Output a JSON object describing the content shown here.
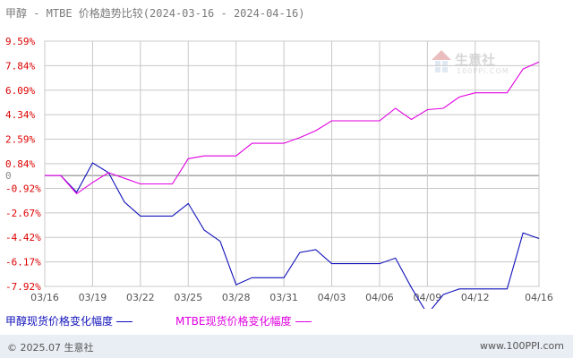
{
  "title": "甲醇 - MTBE 价格趋势比较(2024-03-16 - 2024-04-16)",
  "watermark": {
    "text": "生意社",
    "sub": "100PPI.COM"
  },
  "footer": {
    "copyright": "© 2025.07 生意社",
    "site": "www.100PPI.com"
  },
  "colors": {
    "methanol": "#1111bb",
    "mtbe": "#e000e0",
    "grid": "#c8c8c8",
    "axis_text": "#dd0000",
    "zero_text": "#888888"
  },
  "chart_data": {
    "type": "line",
    "title": "甲醇 - MTBE 价格趋势比较(2024-03-16 - 2024-04-16)",
    "xlabel": "",
    "ylabel": "",
    "ylim": [
      -7.92,
      9.59
    ],
    "yticks": [
      "9.59%",
      "7.84%",
      "6.09%",
      "4.34%",
      "2.59%",
      "0.84%",
      "0",
      "-0.92%",
      "-2.67%",
      "-4.42%",
      "-6.17%",
      "-7.92%"
    ],
    "ytick_values": [
      9.59,
      7.84,
      6.09,
      4.34,
      2.59,
      0.84,
      0,
      -0.92,
      -2.67,
      -4.42,
      -6.17,
      -7.92
    ],
    "x_tick_labels": [
      "03/16",
      "03/19",
      "03/22",
      "03/25",
      "03/28",
      "03/31",
      "04/03",
      "04/06",
      "04/09",
      "04/12",
      "04/16"
    ],
    "x": [
      "03/16",
      "03/17",
      "03/18",
      "03/19",
      "03/20",
      "03/21",
      "03/22",
      "03/23",
      "03/24",
      "03/25",
      "03/26",
      "03/27",
      "03/28",
      "03/29",
      "03/30",
      "03/31",
      "04/01",
      "04/02",
      "04/03",
      "04/04",
      "04/05",
      "04/06",
      "04/07",
      "04/08",
      "04/09",
      "04/10",
      "04/11",
      "04/12",
      "04/13",
      "04/14",
      "04/15",
      "04/16"
    ],
    "grid": true,
    "legend_position": "bottom-left",
    "series": [
      {
        "name": "甲醇现货价格变化幅度",
        "color": "#1111bb",
        "values": [
          0,
          0,
          -1.2,
          0.9,
          0.2,
          -1.9,
          -2.9,
          -2.9,
          -2.9,
          -2.0,
          -3.9,
          -4.7,
          -7.8,
          -7.3,
          -7.3,
          -7.3,
          -5.5,
          -5.3,
          -6.3,
          -6.3,
          -6.3,
          -6.3,
          -5.9,
          -8.0,
          -9.9,
          -8.5,
          -8.1,
          -8.1,
          -8.1,
          -8.1,
          -4.1,
          -4.5
        ]
      },
      {
        "name": "MTBE现货价格变化幅度",
        "color": "#e000e0",
        "values": [
          0,
          0,
          -1.3,
          -0.5,
          0.2,
          -0.2,
          -0.6,
          -0.6,
          -0.6,
          1.2,
          1.4,
          1.4,
          1.4,
          2.3,
          2.3,
          2.3,
          2.7,
          3.2,
          3.9,
          3.9,
          3.9,
          3.9,
          4.8,
          4.0,
          4.7,
          4.8,
          5.6,
          5.9,
          5.9,
          5.9,
          7.6,
          8.1
        ]
      }
    ]
  },
  "legend": [
    {
      "label": "甲醇现货价格变化幅度",
      "color": "#1111bb"
    },
    {
      "label": "MTBE现货价格变化幅度",
      "color": "#e000e0"
    }
  ]
}
